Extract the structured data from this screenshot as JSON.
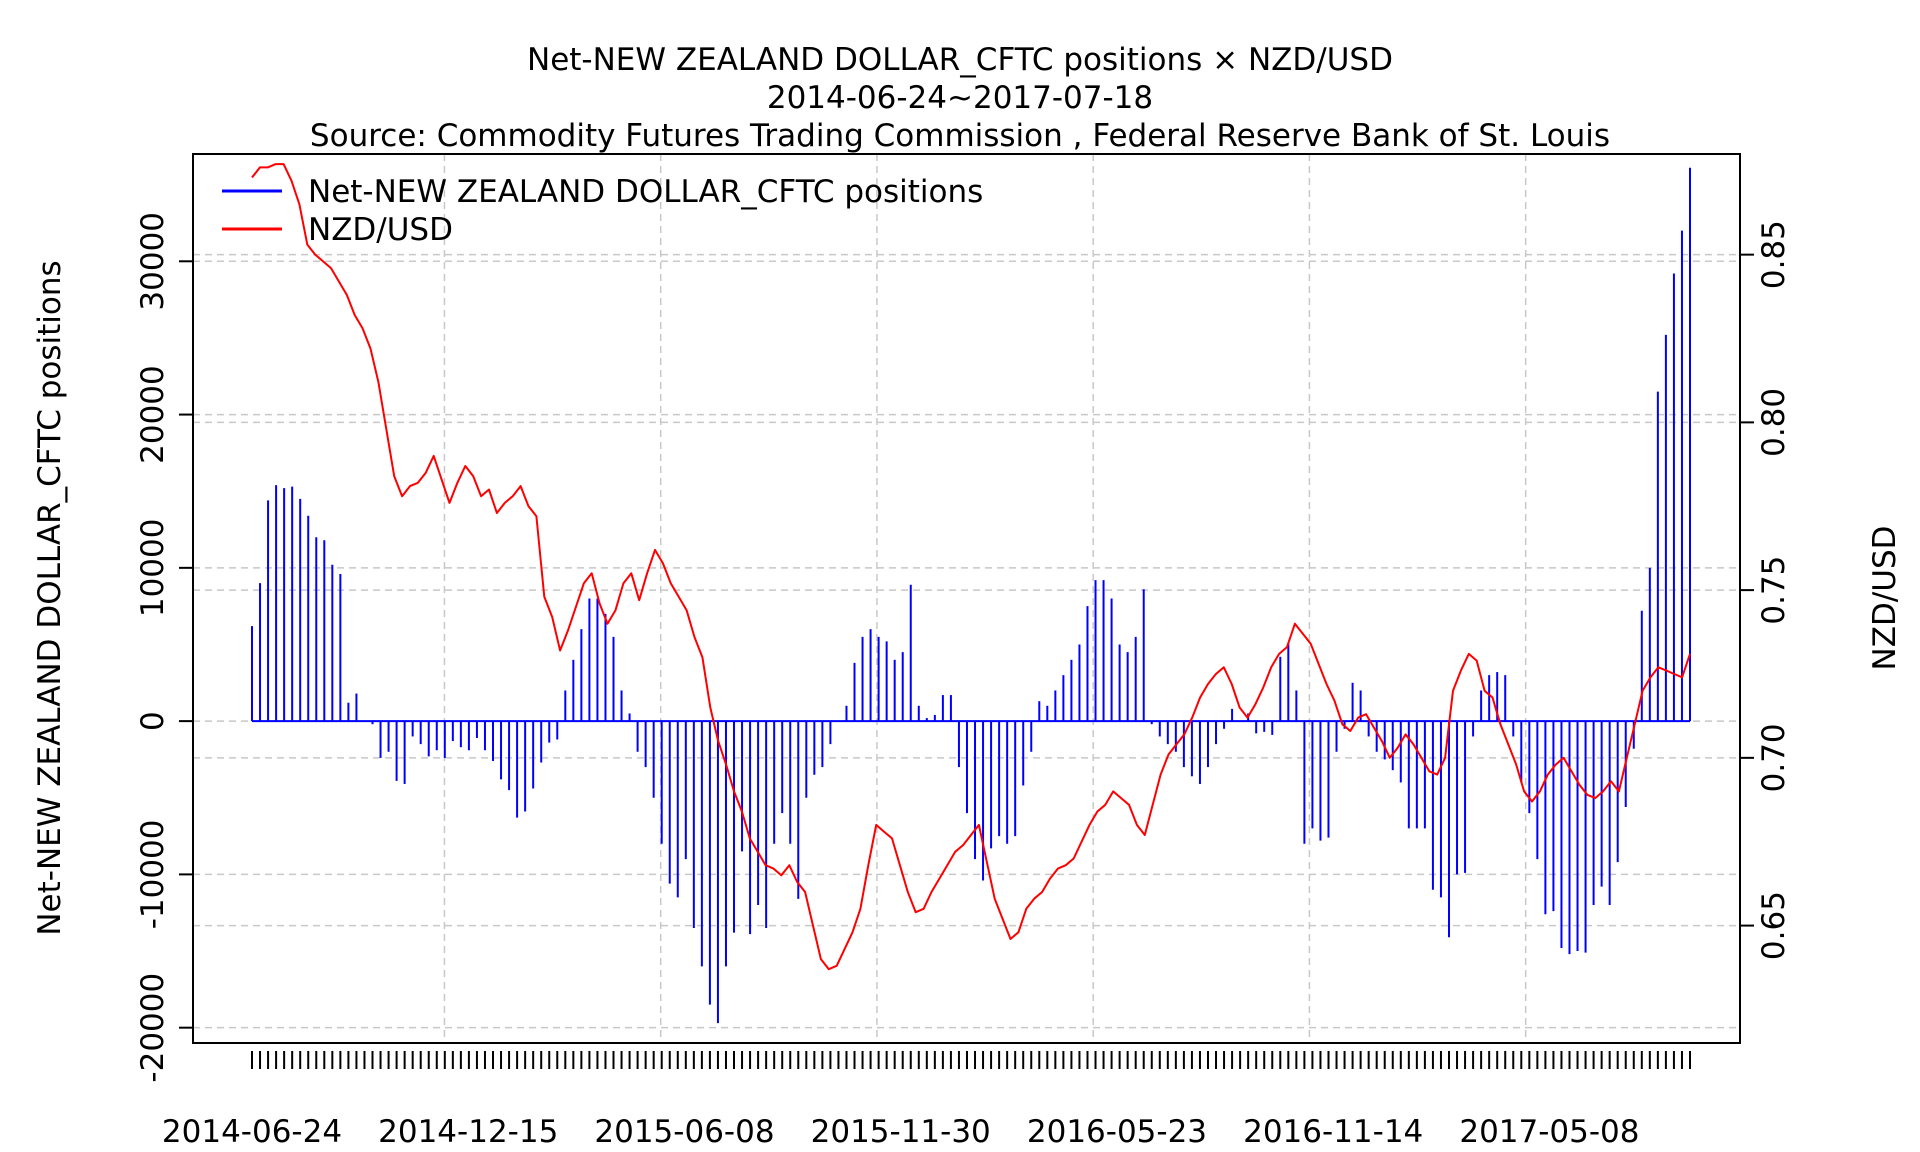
{
  "chart_data": {
    "type": "bar+line",
    "title": "Net-NEW ZEALAND DOLLAR_CFTC positions × NZD/USD",
    "subtitle": "2014-06-24~2017-07-18",
    "source": "Source: Commodity Futures Trading Commission , Federal Reserve Bank of St. Louis",
    "ylabel_left": "Net-NEW ZEALAND DOLLAR_CFTC positions",
    "ylabel_right": "NZD/USD",
    "ylim_left": [
      -21000,
      37000
    ],
    "ylim_right": [
      0.615,
      0.88
    ],
    "yticks_left": [
      -20000,
      -10000,
      0,
      10000,
      20000,
      30000
    ],
    "yticks_left_labels": [
      "-20000",
      "-10000",
      "0",
      "10000",
      "20000",
      "30000"
    ],
    "yticks_right": [
      0.65,
      0.7,
      0.75,
      0.8,
      0.85
    ],
    "yticks_right_labels": [
      "0.65",
      "0.70",
      "0.75",
      "0.80",
      "0.85"
    ],
    "x_start": "2014-06-24",
    "x_end": "2017-07-18",
    "xtick_labels": [
      "2014-06-24",
      "2014-12-15",
      "2015-06-08",
      "2015-11-30",
      "2016-05-23",
      "2016-11-14",
      "2017-05-08"
    ],
    "grid": true,
    "legend_position": "top-left",
    "series": [
      {
        "name": "Net-NEW ZEALAND DOLLAR_CFTC positions",
        "kind": "bar",
        "color": "#0000ff",
        "axis": "left",
        "frequency": "weekly",
        "values": [
          6200,
          9000,
          14400,
          15400,
          15200,
          15300,
          14500,
          13400,
          12000,
          11800,
          10200,
          9600,
          1200,
          1800,
          0,
          -200,
          -2400,
          -2000,
          -3900,
          -4100,
          -1000,
          -1500,
          -2300,
          -1900,
          -2400,
          -1300,
          -1700,
          -1900,
          -1100,
          -1900,
          -2600,
          -3800,
          -4500,
          -6300,
          -5900,
          -4400,
          -2700,
          -1400,
          -1200,
          2000,
          4000,
          6000,
          8000,
          8000,
          7000,
          5500,
          2000,
          500,
          -2000,
          -3000,
          -5000,
          -8000,
          -10600,
          -11500,
          -9000,
          -13500,
          -16000,
          -18500,
          -19700,
          -16000,
          -13800,
          -8500,
          -13900,
          -12000,
          -13500,
          -8000,
          -6000,
          -8000,
          -11600,
          -5000,
          -3500,
          -3000,
          -1500,
          0,
          1000,
          3800,
          5500,
          6000,
          5500,
          5200,
          4000,
          4500,
          8900,
          1000,
          200,
          400,
          1700,
          1700,
          -3000,
          -6000,
          -9000,
          -10400,
          -8300,
          -7500,
          -8000,
          -7500,
          -4200,
          -2000,
          1300,
          1000,
          2000,
          3000,
          4000,
          5000,
          7500,
          9200,
          9200,
          8000,
          5000,
          4500,
          5500,
          8600,
          -200,
          -1000,
          -1500,
          -2000,
          -3000,
          -3600,
          -4100,
          -3000,
          -1500,
          -500,
          800,
          0,
          500,
          -800,
          -700,
          -900,
          4200,
          5100,
          2000,
          -8000,
          -7000,
          -7800,
          -7600,
          -2000,
          -500,
          2500,
          2000,
          -1000,
          -2000,
          -2500,
          -3200,
          -4000,
          -7000,
          -7000,
          -7000,
          -11000,
          -11500,
          -14100,
          -10000,
          -9900,
          -1000,
          2000,
          3000,
          3200,
          3000,
          -1000,
          -4000,
          -6000,
          -9000,
          -12600,
          -12400,
          -14800,
          -15200,
          -15000,
          -15100,
          -12000,
          -10800,
          -12000,
          -9200,
          -5600,
          -1800,
          7200,
          10000,
          21500,
          25200,
          29200,
          32000,
          36100
        ]
      },
      {
        "name": "NZD/USD",
        "kind": "line",
        "color": "#ff0000",
        "axis": "right",
        "frequency": "approx. weekly readings",
        "values": [
          0.873,
          0.876,
          0.876,
          0.877,
          0.877,
          0.872,
          0.865,
          0.853,
          0.85,
          0.848,
          0.846,
          0.842,
          0.838,
          0.832,
          0.828,
          0.822,
          0.812,
          0.798,
          0.784,
          0.778,
          0.781,
          0.782,
          0.785,
          0.79,
          0.783,
          0.776,
          0.782,
          0.787,
          0.784,
          0.778,
          0.78,
          0.773,
          0.776,
          0.778,
          0.781,
          0.775,
          0.772,
          0.748,
          0.742,
          0.732,
          0.738,
          0.745,
          0.752,
          0.755,
          0.746,
          0.74,
          0.744,
          0.752,
          0.755,
          0.747,
          0.755,
          0.762,
          0.758,
          0.752,
          0.748,
          0.744,
          0.736,
          0.73,
          0.715,
          0.705,
          0.698,
          0.69,
          0.684,
          0.676,
          0.672,
          0.668,
          0.667,
          0.665,
          0.668,
          0.663,
          0.66,
          0.65,
          0.64,
          0.637,
          0.638,
          0.643,
          0.648,
          0.655,
          0.668,
          0.68,
          0.678,
          0.676,
          0.668,
          0.66,
          0.654,
          0.655,
          0.66,
          0.664,
          0.668,
          0.672,
          0.674,
          0.677,
          0.68,
          0.669,
          0.658,
          0.652,
          0.646,
          0.648,
          0.655,
          0.658,
          0.66,
          0.664,
          0.667,
          0.668,
          0.67,
          0.675,
          0.68,
          0.684,
          0.686,
          0.69,
          0.688,
          0.686,
          0.68,
          0.677,
          0.686,
          0.695,
          0.701,
          0.704,
          0.707,
          0.712,
          0.718,
          0.722,
          0.725,
          0.727,
          0.722,
          0.715,
          0.712,
          0.716,
          0.721,
          0.727,
          0.731,
          0.733,
          0.74,
          0.737,
          0.734,
          0.728,
          0.722,
          0.717,
          0.71,
          0.708,
          0.712,
          0.713,
          0.709,
          0.705,
          0.7,
          0.703,
          0.707,
          0.704,
          0.7,
          0.696,
          0.695,
          0.7,
          0.72,
          0.726,
          0.731,
          0.729,
          0.72,
          0.718,
          0.71,
          0.704,
          0.698,
          0.69,
          0.687,
          0.69,
          0.695,
          0.698,
          0.7,
          0.696,
          0.692,
          0.689,
          0.688,
          0.69,
          0.693,
          0.69,
          0.7,
          0.71,
          0.72,
          0.724,
          0.727,
          0.726,
          0.725,
          0.724,
          0.731
        ]
      }
    ]
  }
}
